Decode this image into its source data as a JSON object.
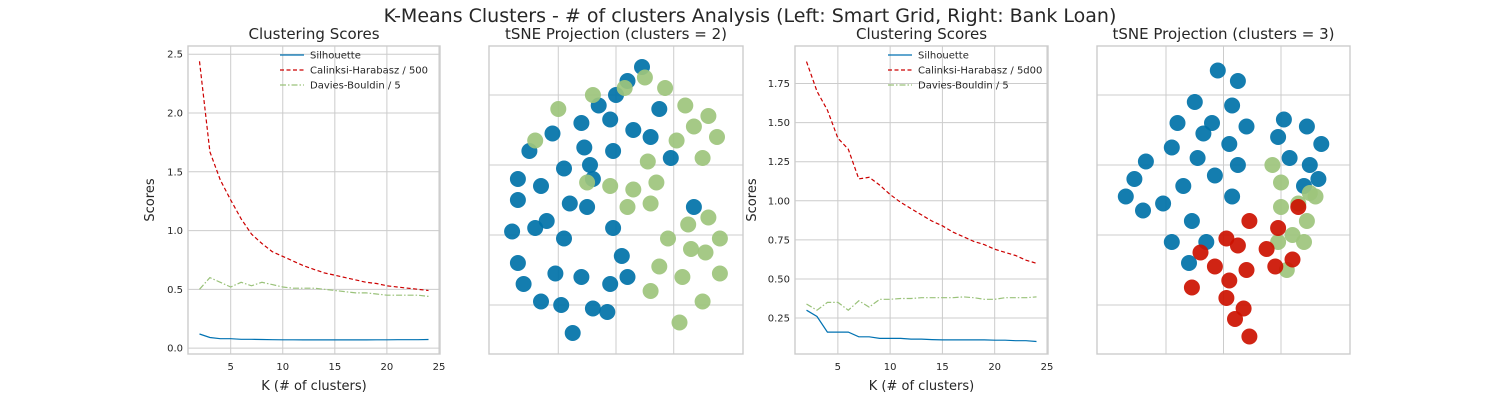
{
  "figure": {
    "suptitle": "K-Means Clusters - # of clusters Analysis (Left: Smart Grid, Right: Bank Loan)"
  },
  "colors": {
    "silhouette": "#0072B2",
    "calinski": "#CC0000",
    "davies": "#9AC27A",
    "cluster_0": "#0072A8",
    "cluster_1": "#9DC47C",
    "cluster_2": "#CC1100",
    "grid": "#CCCCCC",
    "frame": "#CCCCCC"
  },
  "chart_data": [
    {
      "type": "line",
      "title": "Clustering Scores",
      "xlabel": "K (# of clusters)",
      "ylabel": "Scores",
      "xlim": [
        0.9,
        25.1
      ],
      "ylim": [
        -0.05,
        2.57
      ],
      "xticks": [
        5,
        10,
        15,
        20,
        25
      ],
      "yticks": [
        0.0,
        0.5,
        1.0,
        1.5,
        2.0,
        2.5
      ],
      "ytick_labels": [
        "0.0",
        "0.5",
        "1.0",
        "1.5",
        "2.0",
        "2.5"
      ],
      "grid": true,
      "legend": "top-right",
      "x": [
        2,
        3,
        4,
        5,
        6,
        7,
        8,
        9,
        10,
        11,
        12,
        13,
        14,
        15,
        16,
        17,
        18,
        19,
        20,
        21,
        22,
        23,
        24
      ],
      "series": [
        {
          "name": "Silhouette",
          "color_key": "silhouette",
          "style": "solid",
          "values": [
            0.12,
            0.09,
            0.08,
            0.08,
            0.075,
            0.075,
            0.073,
            0.072,
            0.071,
            0.071,
            0.07,
            0.07,
            0.07,
            0.07,
            0.07,
            0.07,
            0.07,
            0.071,
            0.071,
            0.072,
            0.072,
            0.072,
            0.073
          ]
        },
        {
          "name": "Calinksi-Harabasz / 500",
          "color_key": "calinski",
          "style": "dashed",
          "values": [
            2.44,
            1.67,
            1.43,
            1.26,
            1.1,
            0.97,
            0.89,
            0.82,
            0.78,
            0.74,
            0.7,
            0.67,
            0.64,
            0.62,
            0.6,
            0.58,
            0.56,
            0.55,
            0.53,
            0.52,
            0.51,
            0.5,
            0.49
          ]
        },
        {
          "name": "Davies-Bouldin / 5",
          "color_key": "davies",
          "style": "dashdot",
          "values": [
            0.5,
            0.6,
            0.56,
            0.52,
            0.56,
            0.53,
            0.56,
            0.54,
            0.52,
            0.51,
            0.51,
            0.51,
            0.5,
            0.49,
            0.48,
            0.47,
            0.47,
            0.46,
            0.45,
            0.45,
            0.45,
            0.45,
            0.44
          ]
        }
      ]
    },
    {
      "type": "scatter",
      "title": "tSNE Projection (clusters = 2)",
      "xlim": [
        -2.2,
        2.2
      ],
      "ylim": [
        -2.2,
        2.2
      ],
      "xticks": [
        -1,
        0,
        1
      ],
      "yticks": [
        -1.5,
        -0.5,
        0.5,
        1.5
      ],
      "grid": true,
      "legend": "none",
      "clusters": [
        {
          "label": "cluster 0",
          "color_key": "cluster_0",
          "points": [
            [
              0.45,
              1.9
            ],
            [
              0.2,
              1.7
            ],
            [
              0,
              1.5
            ],
            [
              -0.3,
              1.35
            ],
            [
              -0.6,
              1.1
            ],
            [
              -1.1,
              0.95
            ],
            [
              -1.5,
              0.7
            ],
            [
              -1.7,
              0.3
            ],
            [
              -1.3,
              0.2
            ],
            [
              -0.9,
              0.45
            ],
            [
              -0.45,
              0.5
            ],
            [
              -0.05,
              0.7
            ],
            [
              0.3,
              1
            ],
            [
              0.6,
              0.9
            ],
            [
              0.95,
              0.6
            ],
            [
              0.75,
              1.3
            ],
            [
              -0.1,
              1.15
            ],
            [
              -0.55,
              0.75
            ],
            [
              -1.7,
              0.0
            ],
            [
              -1.2,
              -0.3
            ],
            [
              -0.8,
              -0.05
            ],
            [
              -0.4,
              0.3
            ],
            [
              -0.5,
              -0.1
            ],
            [
              -0.05,
              -0.4
            ],
            [
              0.1,
              -0.8
            ],
            [
              -0.1,
              -1.2
            ],
            [
              -0.4,
              -1.55
            ],
            [
              -0.75,
              -1.9
            ],
            [
              -1.3,
              -1.45
            ],
            [
              -1.7,
              -0.9
            ],
            [
              -1.4,
              -0.4
            ],
            [
              -0.9,
              -0.55
            ],
            [
              -0.6,
              -1.1
            ],
            [
              -1.05,
              -1.05
            ],
            [
              -0.15,
              -1.6
            ],
            [
              0.2,
              -1.1
            ],
            [
              -1.8,
              -0.45
            ],
            [
              -1.6,
              -1.2
            ],
            [
              -0.95,
              -1.5
            ],
            [
              1.35,
              -0.1
            ]
          ]
        },
        {
          "label": "cluster 1",
          "color_key": "cluster_1",
          "points": [
            [
              0.15,
              1.6
            ],
            [
              0.5,
              1.75
            ],
            [
              0.85,
              1.6
            ],
            [
              1.2,
              1.35
            ],
            [
              1.6,
              1.2
            ],
            [
              1.75,
              0.9
            ],
            [
              1.5,
              0.6
            ],
            [
              1.05,
              0.85
            ],
            [
              1.35,
              1.05
            ],
            [
              -0.4,
              1.5
            ],
            [
              -1.0,
              1.3
            ],
            [
              -1.4,
              0.85
            ],
            [
              -0.5,
              0.25
            ],
            [
              -0.1,
              0.2
            ],
            [
              0.3,
              0.15
            ],
            [
              0.7,
              0.25
            ],
            [
              0.6,
              -0.05
            ],
            [
              0.2,
              -0.1
            ],
            [
              1.25,
              -0.35
            ],
            [
              1.55,
              -0.75
            ],
            [
              1.8,
              -1.05
            ],
            [
              1.5,
              -1.45
            ],
            [
              1.1,
              -1.75
            ],
            [
              0.6,
              -1.3
            ],
            [
              0.75,
              -0.95
            ],
            [
              1.15,
              -1.1
            ],
            [
              1.6,
              -0.25
            ],
            [
              1.8,
              -0.55
            ],
            [
              0.55,
              0.55
            ],
            [
              0.9,
              -0.55
            ],
            [
              1.3,
              -0.7
            ]
          ]
        }
      ]
    },
    {
      "type": "line",
      "title": "Clustering Scores",
      "xlabel": "K (# of clusters)",
      "ylabel": "Scores",
      "xlim": [
        0.9,
        25.1
      ],
      "ylim": [
        0.02,
        1.99
      ],
      "xticks": [
        5,
        10,
        15,
        20,
        25
      ],
      "yticks": [
        0.25,
        0.5,
        0.75,
        1.0,
        1.25,
        1.5,
        1.75
      ],
      "ytick_labels": [
        "0.25",
        "0.50",
        "0.75",
        "1.00",
        "1.25",
        "1.50",
        "1.75"
      ],
      "grid": true,
      "legend": "top-right",
      "x": [
        2,
        3,
        4,
        5,
        6,
        7,
        8,
        9,
        10,
        11,
        12,
        13,
        14,
        15,
        16,
        17,
        18,
        19,
        20,
        21,
        22,
        23,
        24
      ],
      "series": [
        {
          "name": "Silhouette",
          "color_key": "silhouette",
          "style": "solid",
          "values": [
            0.3,
            0.26,
            0.16,
            0.16,
            0.16,
            0.13,
            0.13,
            0.12,
            0.12,
            0.12,
            0.115,
            0.115,
            0.112,
            0.11,
            0.11,
            0.11,
            0.11,
            0.11,
            0.108,
            0.108,
            0.105,
            0.105,
            0.1
          ]
        },
        {
          "name": "Calinksi-Harabasz / 5d00",
          "color_key": "calinski",
          "style": "dashed",
          "values": [
            1.89,
            1.7,
            1.58,
            1.4,
            1.33,
            1.14,
            1.15,
            1.1,
            1.04,
            0.99,
            0.95,
            0.91,
            0.87,
            0.84,
            0.8,
            0.77,
            0.74,
            0.72,
            0.69,
            0.67,
            0.65,
            0.62,
            0.6
          ]
        },
        {
          "name": "Davies-Bouldin / 5",
          "color_key": "davies",
          "style": "dashdot",
          "values": [
            0.34,
            0.3,
            0.35,
            0.35,
            0.3,
            0.36,
            0.32,
            0.37,
            0.37,
            0.375,
            0.375,
            0.38,
            0.38,
            0.38,
            0.38,
            0.385,
            0.38,
            0.37,
            0.37,
            0.38,
            0.38,
            0.38,
            0.385
          ]
        }
      ]
    },
    {
      "type": "scatter",
      "title": "tSNE Projection (clusters = 3)",
      "xlim": [
        -2.2,
        2.2
      ],
      "ylim": [
        -2.2,
        2.2
      ],
      "xticks": [
        -1,
        0,
        1
      ],
      "yticks": [
        -1.5,
        -0.5,
        0.5,
        1.5
      ],
      "grid": true,
      "legend": "none",
      "clusters": [
        {
          "label": "cluster 0",
          "color_key": "cluster_0",
          "points": [
            [
              -0.1,
              1.85
            ],
            [
              0.25,
              1.7
            ],
            [
              0.15,
              1.35
            ],
            [
              -0.2,
              1.1
            ],
            [
              0.4,
              1.05
            ],
            [
              0.1,
              0.8
            ],
            [
              -0.35,
              0.95
            ],
            [
              -0.45,
              0.6
            ],
            [
              -0.9,
              0.75
            ],
            [
              -1.35,
              0.55
            ],
            [
              -1.55,
              0.3
            ],
            [
              -1.7,
              0.05
            ],
            [
              -1.4,
              -0.15
            ],
            [
              -1.05,
              -0.05
            ],
            [
              -0.7,
              0.2
            ],
            [
              -0.55,
              -0.3
            ],
            [
              -0.3,
              -0.6
            ],
            [
              -0.6,
              -0.9
            ],
            [
              -0.9,
              -0.6
            ],
            [
              -0.15,
              0.35
            ],
            [
              0.15,
              0.05
            ],
            [
              -0.8,
              1.1
            ],
            [
              -0.5,
              1.4
            ],
            [
              0.25,
              0.5
            ],
            [
              1.05,
              1.15
            ],
            [
              1.45,
              1.05
            ],
            [
              1.7,
              0.8
            ],
            [
              1.5,
              0.5
            ],
            [
              1.15,
              0.6
            ],
            [
              0.95,
              0.9
            ],
            [
              1.65,
              0.3
            ],
            [
              1.4,
              0.2
            ]
          ]
        },
        {
          "label": "cluster 1",
          "color_key": "cluster_1",
          "points": [
            [
              1.0,
              -0.1
            ],
            [
              1.3,
              -0.05
            ],
            [
              1.6,
              0.05
            ],
            [
              1.2,
              -0.5
            ],
            [
              0.95,
              -0.6
            ],
            [
              1.1,
              -1.0
            ],
            [
              1.4,
              -0.6
            ],
            [
              1.45,
              -0.3
            ],
            [
              1.0,
              0.25
            ],
            [
              1.5,
              0.1
            ],
            [
              0.85,
              0.5
            ]
          ]
        },
        {
          "label": "cluster 2",
          "color_key": "cluster_2",
          "points": [
            [
              0.45,
              -0.3
            ],
            [
              0.25,
              -0.65
            ],
            [
              0.05,
              -0.55
            ],
            [
              -0.15,
              -0.95
            ],
            [
              0.1,
              -1.15
            ],
            [
              0.4,
              -1.0
            ],
            [
              0.35,
              -1.55
            ],
            [
              0.45,
              -1.95
            ],
            [
              0.2,
              -1.7
            ],
            [
              0.05,
              -1.4
            ],
            [
              -0.55,
              -1.25
            ],
            [
              0.75,
              -0.7
            ],
            [
              0.9,
              -0.95
            ],
            [
              1.2,
              -0.85
            ],
            [
              0.95,
              -0.4
            ],
            [
              1.3,
              -0.1
            ],
            [
              -0.4,
              -0.75
            ]
          ]
        }
      ]
    }
  ]
}
